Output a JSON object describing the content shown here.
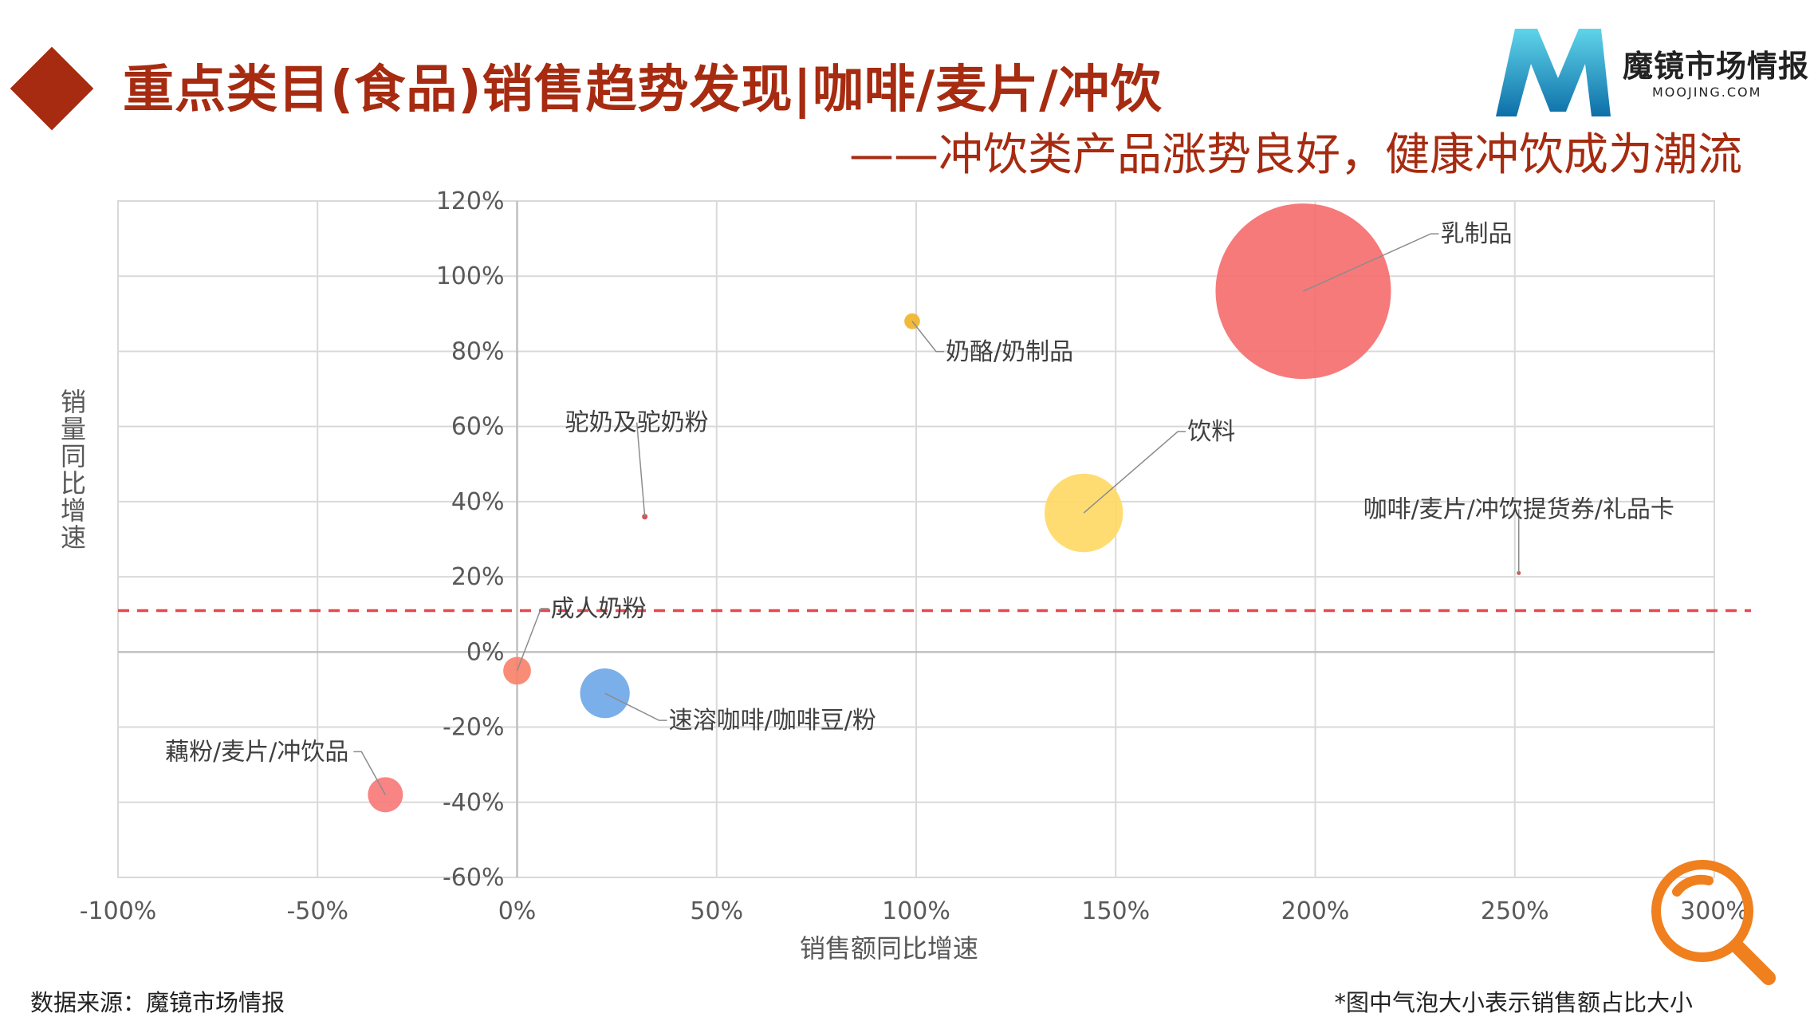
{
  "header": {
    "title": "重点类目(食品)销售趋势发现|咖啡/麦片/冲饮",
    "subtitle": "——冲饮类产品涨势良好，健康冲饮成为潮流"
  },
  "logo": {
    "name": "魔镜市场情报",
    "site": "MOOJING.COM",
    "icon": "moojing-m-logo"
  },
  "footer": {
    "source": "数据来源：魔镜市场情报",
    "note": "*图中气泡大小表示销售额占比大小"
  },
  "chart_data": {
    "type": "scatter",
    "variant": "bubble",
    "xlabel": "销售额同比增速",
    "ylabel": "销量同比增速",
    "xlim": [
      -100,
      300
    ],
    "ylim": [
      -60,
      120
    ],
    "x_unit": "%",
    "y_unit": "%",
    "x_ticks": [
      -100,
      -50,
      0,
      50,
      100,
      150,
      200,
      250,
      300
    ],
    "y_ticks": [
      -60,
      -40,
      -20,
      0,
      20,
      40,
      60,
      80,
      100,
      120
    ],
    "x_tick_labels": [
      "-100%",
      "-50%",
      "0%",
      "50%",
      "100%",
      "150%",
      "200%",
      "250%",
      "300%"
    ],
    "y_tick_labels": [
      "-60%",
      "-40%",
      "-20%",
      "0%",
      "20%",
      "40%",
      "60%",
      "80%",
      "100%",
      "120%"
    ],
    "grid": true,
    "reference_line": {
      "y": 11,
      "style": "dashed",
      "color": "#e8474b"
    },
    "points": [
      {
        "name": "乳制品",
        "x": 197,
        "y": 96,
        "size": 100,
        "color": "#f56f6f"
      },
      {
        "name": "奶酪/奶制品",
        "x": 99,
        "y": 88,
        "size": 0.8,
        "color": "#f0b429"
      },
      {
        "name": "驼奶及驼奶粉",
        "x": 32,
        "y": 36,
        "size": 0.1,
        "color": "#d94040"
      },
      {
        "name": "饮料",
        "x": 142,
        "y": 37,
        "size": 20,
        "color": "#ffd966"
      },
      {
        "name": "咖啡/麦片/冲饮提货券/礼品卡",
        "x": 251,
        "y": 21,
        "size": 0.05,
        "color": "#d94040"
      },
      {
        "name": "成人奶粉",
        "x": 0,
        "y": -5,
        "size": 2.5,
        "color": "#f8826a"
      },
      {
        "name": "速溶咖啡/咖啡豆/粉",
        "x": 22,
        "y": -11,
        "size": 8,
        "color": "#6fa8e8"
      },
      {
        "name": "藕粉/麦片/冲饮品",
        "x": -33,
        "y": -38,
        "size": 4,
        "color": "#f87a7a"
      }
    ]
  },
  "decor": {
    "magnifier_color": "#f07f1e"
  }
}
